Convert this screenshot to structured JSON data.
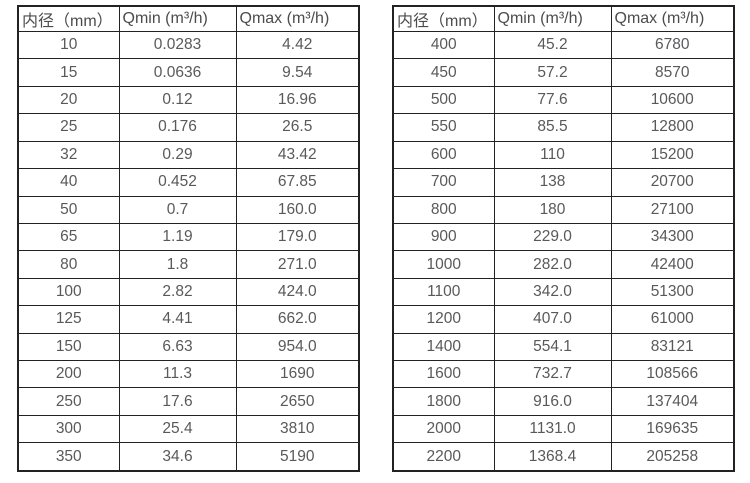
{
  "colors": {
    "background": "#ffffff",
    "border": "#222222",
    "header_text": "#4c4c4c",
    "cell_text": "#58595b"
  },
  "tables": [
    {
      "name": "flow-rate-table-left",
      "headers": [
        "内径（mm）",
        "Qmin (m³/h)",
        "Qmax (m³/h)"
      ],
      "rows": [
        [
          "10",
          "0.0283",
          "4.42"
        ],
        [
          "15",
          "0.0636",
          "9.54"
        ],
        [
          "20",
          "0.12",
          "16.96"
        ],
        [
          "25",
          "0.176",
          "26.5"
        ],
        [
          "32",
          "0.29",
          "43.42"
        ],
        [
          "40",
          "0.452",
          "67.85"
        ],
        [
          "50",
          "0.7",
          "160.0"
        ],
        [
          "65",
          "1.19",
          "179.0"
        ],
        [
          "80",
          "1.8",
          "271.0"
        ],
        [
          "100",
          "2.82",
          "424.0"
        ],
        [
          "125",
          "4.41",
          "662.0"
        ],
        [
          "150",
          "6.63",
          "954.0"
        ],
        [
          "200",
          "11.3",
          "1690"
        ],
        [
          "250",
          "17.6",
          "2650"
        ],
        [
          "300",
          "25.4",
          "3810"
        ],
        [
          "350",
          "34.6",
          "5190"
        ]
      ]
    },
    {
      "name": "flow-rate-table-right",
      "headers": [
        "内径（mm）",
        "Qmin (m³/h)",
        "Qmax (m³/h)"
      ],
      "rows": [
        [
          "400",
          "45.2",
          "6780"
        ],
        [
          "450",
          "57.2",
          "8570"
        ],
        [
          "500",
          "77.6",
          "10600"
        ],
        [
          "550",
          "85.5",
          "12800"
        ],
        [
          "600",
          "110",
          "15200"
        ],
        [
          "700",
          "138",
          "20700"
        ],
        [
          "800",
          "180",
          "27100"
        ],
        [
          "900",
          "229.0",
          "34300"
        ],
        [
          "1000",
          "282.0",
          "42400"
        ],
        [
          "1100",
          "342.0",
          "51300"
        ],
        [
          "1200",
          "407.0",
          "61000"
        ],
        [
          "1400",
          "554.1",
          "83121"
        ],
        [
          "1600",
          "732.7",
          "108566"
        ],
        [
          "1800",
          "916.0",
          "137404"
        ],
        [
          "2000",
          "1131.0",
          "169635"
        ],
        [
          "2200",
          "1368.4",
          "205258"
        ]
      ]
    }
  ]
}
